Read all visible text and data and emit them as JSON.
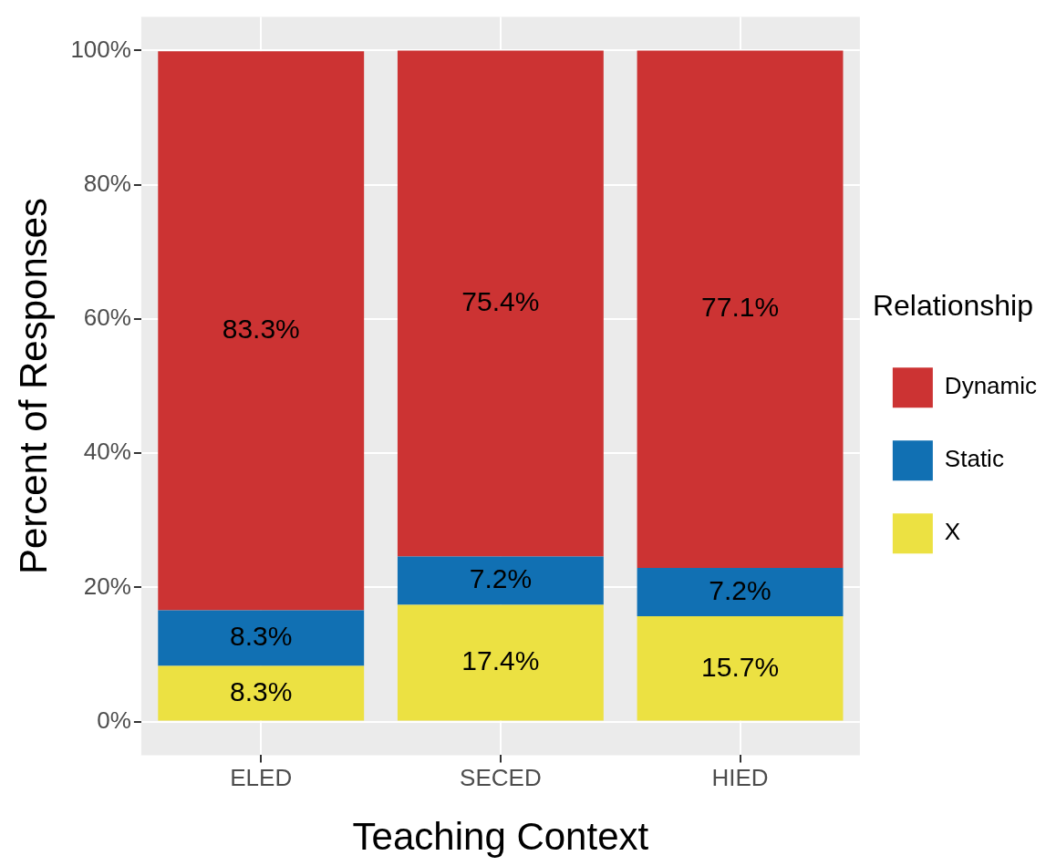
{
  "chart_data": {
    "type": "bar",
    "stacked": true,
    "xlabel": "Teaching Context",
    "ylabel": "Percent of Responses",
    "legend_title": "Relationship",
    "legend": "right",
    "grid": true,
    "categories": [
      "ELED",
      "SECED",
      "HIED"
    ],
    "ylim": [
      -5,
      105
    ],
    "yticks": [
      {
        "value": 0,
        "label": "0%"
      },
      {
        "value": 20,
        "label": "20%"
      },
      {
        "value": 40,
        "label": "40%"
      },
      {
        "value": 60,
        "label": "60%"
      },
      {
        "value": 80,
        "label": "80%"
      },
      {
        "value": 100,
        "label": "100%"
      }
    ],
    "series": [
      {
        "name": "X",
        "color": "#ece142",
        "values": [
          8.3,
          17.4,
          15.7
        ],
        "value_labels": [
          "8.3%",
          "17.4%",
          "15.7%"
        ]
      },
      {
        "name": "Static",
        "color": "#1170b3",
        "values": [
          8.3,
          7.2,
          7.2
        ],
        "value_labels": [
          "8.3%",
          "7.2%",
          "7.2%"
        ]
      },
      {
        "name": "Dynamic",
        "color": "#cc3333",
        "values": [
          83.3,
          75.4,
          77.1
        ],
        "value_labels": [
          "83.3%",
          "75.4%",
          "77.1%"
        ]
      }
    ]
  }
}
